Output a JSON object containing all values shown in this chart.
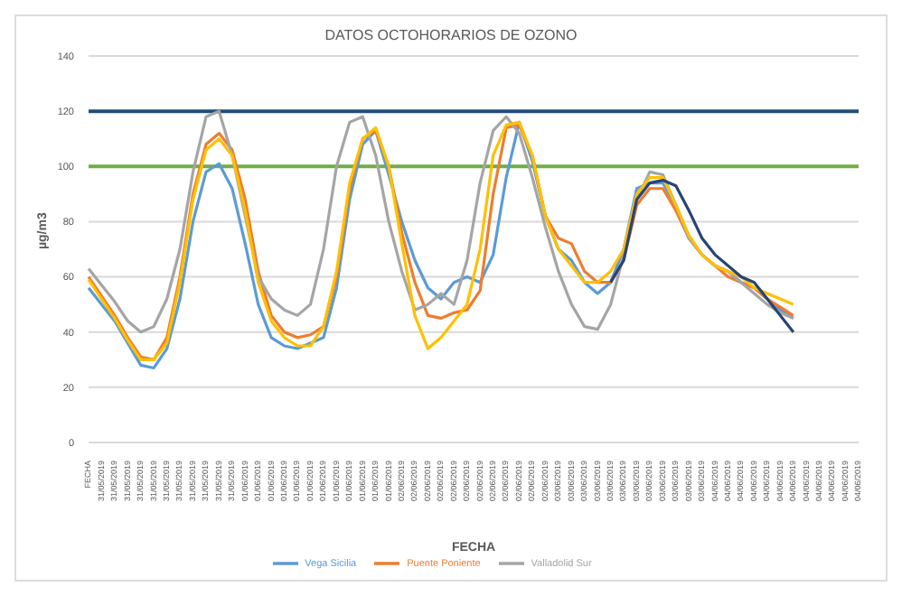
{
  "chart_data": {
    "type": "line",
    "title": "DATOS OCTOHORARIOS DE OZONO",
    "xlabel": "FECHA",
    "ylabel": "µg/m3",
    "categories": [
      "FECHA",
      "31/05/2019",
      "31/05/2019",
      "31/05/2019",
      "31/05/2019",
      "31/05/2019",
      "31/05/2019",
      "31/05/2019",
      "31/05/2019",
      "31/05/2019",
      "31/05/2019",
      "31/05/2019",
      "01/06/2019",
      "01/06/2019",
      "01/06/2019",
      "01/06/2019",
      "01/06/2019",
      "01/06/2019",
      "01/06/2019",
      "01/06/2019",
      "01/06/2019",
      "01/06/2019",
      "01/06/2019",
      "01/06/2019",
      "02/06/2019",
      "02/06/2019",
      "02/06/2019",
      "02/06/2019",
      "02/06/2019",
      "02/06/2019",
      "02/06/2019",
      "02/06/2019",
      "02/06/2019",
      "02/06/2019",
      "02/06/2019",
      "02/06/2019",
      "03/06/2019",
      "03/06/2019",
      "03/06/2019",
      "03/06/2019",
      "03/06/2019",
      "03/06/2019",
      "03/06/2019",
      "03/06/2019",
      "03/06/2019",
      "03/06/2019",
      "03/06/2019",
      "03/06/2019",
      "04/06/2019",
      "04/06/2019",
      "04/06/2019",
      "04/06/2019",
      "04/06/2019",
      "04/06/2019",
      "04/06/2019",
      "04/06/2019",
      "04/06/2019",
      "04/06/2019",
      "04/06/2019",
      "04/06/2019"
    ],
    "series": [
      {
        "name": "Vega Sicilia",
        "color": "#5b9bd5",
        "values": [
          56,
          50,
          44,
          36,
          28,
          27,
          34,
          52,
          80,
          98,
          101,
          92,
          72,
          50,
          38,
          35,
          34,
          36,
          38,
          56,
          88,
          108,
          113,
          97,
          80,
          66,
          56,
          52,
          58,
          60,
          58,
          68,
          96,
          116,
          102,
          82,
          70,
          66,
          58,
          54,
          58,
          70,
          92,
          94,
          94,
          86,
          74,
          68,
          64,
          62,
          58,
          56,
          52,
          48,
          45,
          null,
          null,
          null,
          null,
          null
        ]
      },
      {
        "name": "Puente Poniente",
        "color": "#ed7d31",
        "values": [
          60,
          53,
          46,
          38,
          31,
          30,
          38,
          60,
          90,
          108,
          112,
          106,
          88,
          62,
          46,
          40,
          38,
          39,
          42,
          60,
          92,
          110,
          113,
          100,
          76,
          58,
          46,
          45,
          47,
          48,
          55,
          90,
          114,
          115,
          104,
          82,
          74,
          72,
          62,
          58,
          58,
          66,
          86,
          92,
          92,
          84,
          74,
          68,
          64,
          60,
          58,
          56,
          52,
          49,
          46,
          null,
          null,
          null,
          null,
          null
        ]
      },
      {
        "name": "Valladolid Sur",
        "color": "#a5a5a5",
        "values": [
          63,
          57,
          51,
          44,
          40,
          42,
          52,
          70,
          98,
          118,
          120,
          104,
          82,
          60,
          52,
          48,
          46,
          50,
          70,
          100,
          116,
          118,
          104,
          80,
          62,
          48,
          50,
          54,
          50,
          66,
          94,
          113,
          118,
          112,
          96,
          78,
          62,
          50,
          42,
          41,
          50,
          68,
          88,
          98,
          97,
          86,
          74,
          68,
          64,
          62,
          58,
          54,
          50,
          47,
          45,
          null,
          null,
          null,
          null,
          null
        ]
      },
      {
        "color": "#ffc000",
        "values": [
          59,
          52,
          45,
          37,
          30,
          30,
          36,
          58,
          88,
          106,
          110,
          104,
          84,
          58,
          44,
          38,
          35,
          35,
          42,
          62,
          94,
          110,
          114,
          100,
          72,
          46,
          34,
          38,
          44,
          50,
          70,
          104,
          115,
          116,
          104,
          82,
          70,
          64,
          58,
          58,
          62,
          70,
          90,
          96,
          96,
          86,
          75,
          68,
          64,
          62,
          60,
          56,
          54,
          52,
          50,
          null,
          null,
          null,
          null,
          null
        ]
      },
      {
        "color": "#264478",
        "values": [
          null,
          null,
          null,
          null,
          null,
          null,
          null,
          null,
          null,
          null,
          null,
          null,
          null,
          null,
          null,
          null,
          null,
          null,
          null,
          null,
          null,
          null,
          null,
          null,
          null,
          null,
          null,
          null,
          null,
          null,
          null,
          null,
          null,
          null,
          null,
          null,
          null,
          null,
          null,
          null,
          58,
          66,
          88,
          94,
          95,
          93,
          84,
          74,
          68,
          64,
          60,
          58,
          52,
          46,
          40,
          null,
          null,
          null,
          null,
          null
        ]
      }
    ],
    "ylim": [
      0,
      140
    ],
    "yticks": [
      0,
      20,
      40,
      60,
      80,
      100,
      120,
      140
    ],
    "grid": "y",
    "legend": "bottom",
    "marker": "none",
    "line_style": "solid",
    "ref_lines": [
      {
        "axis": "y",
        "value": 120,
        "color": "#1f4e79"
      },
      {
        "axis": "y",
        "value": 100,
        "color": "#70ad47"
      }
    ]
  }
}
